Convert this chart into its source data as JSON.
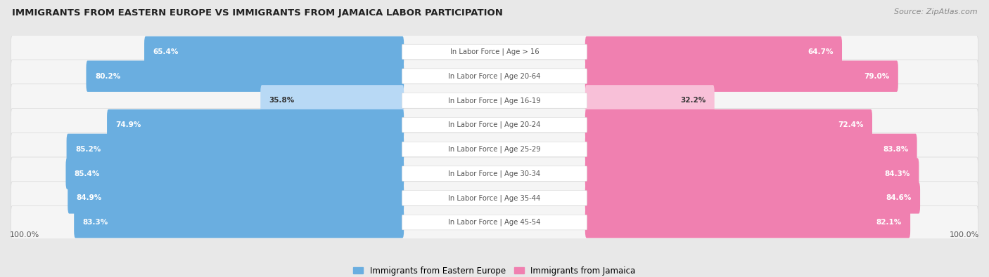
{
  "title": "IMMIGRANTS FROM EASTERN EUROPE VS IMMIGRANTS FROM JAMAICA LABOR PARTICIPATION",
  "source": "Source: ZipAtlas.com",
  "categories": [
    "In Labor Force | Age > 16",
    "In Labor Force | Age 20-64",
    "In Labor Force | Age 16-19",
    "In Labor Force | Age 20-24",
    "In Labor Force | Age 25-29",
    "In Labor Force | Age 30-34",
    "In Labor Force | Age 35-44",
    "In Labor Force | Age 45-54"
  ],
  "eastern_europe": [
    65.4,
    80.2,
    35.8,
    74.9,
    85.2,
    85.4,
    84.9,
    83.3
  ],
  "jamaica": [
    64.7,
    79.0,
    32.2,
    72.4,
    83.8,
    84.3,
    84.6,
    82.1
  ],
  "blue_color": "#6aaee0",
  "blue_color_light": "#b8d9f5",
  "pink_color": "#f080b0",
  "pink_color_light": "#f8c0d8",
  "label_blue": "Immigrants from Eastern Europe",
  "label_pink": "Immigrants from Jamaica",
  "bg_color": "#e8e8e8",
  "row_bg": "#f5f5f5",
  "row_border": "#d8d8d8",
  "axis_label": "100.0%",
  "max_val": 100.0,
  "center_label_color": "#555555",
  "val_text_color_dark": "#333333",
  "val_text_color_light": "white"
}
